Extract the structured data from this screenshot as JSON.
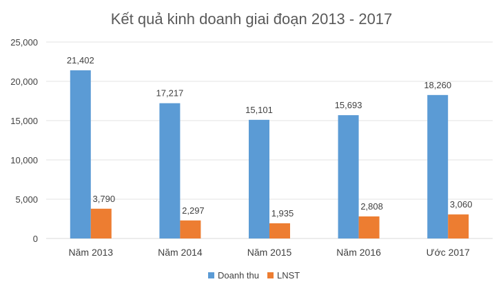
{
  "chart_data": {
    "type": "bar",
    "title": "Kết quả kinh doanh giai đoạn 2013 - 2017",
    "xlabel": "",
    "ylabel": "",
    "categories": [
      "Năm 2013",
      "Năm 2014",
      "Năm 2015",
      "Năm 2016",
      "Ước 2017"
    ],
    "series": [
      {
        "name": "Doanh thu",
        "color": "#5b9bd5",
        "values": [
          21402,
          17217,
          15101,
          15693,
          18260
        ],
        "labels": [
          "21,402",
          "17,217",
          "15,101",
          "15,693",
          "18,260"
        ]
      },
      {
        "name": "LNST",
        "color": "#ed7d31",
        "values": [
          3790,
          2297,
          1935,
          2808,
          3060
        ],
        "labels": [
          "3,790",
          "2,297",
          "1,935",
          "2,808",
          "3,060"
        ]
      }
    ],
    "ylim": [
      0,
      25000
    ],
    "yticks": [
      0,
      5000,
      10000,
      15000,
      20000,
      25000
    ],
    "ytick_labels": [
      "0",
      "5,000",
      "10,000",
      "15,000",
      "20,000",
      "25,000"
    ],
    "grid": true,
    "legend_position": "bottom"
  }
}
